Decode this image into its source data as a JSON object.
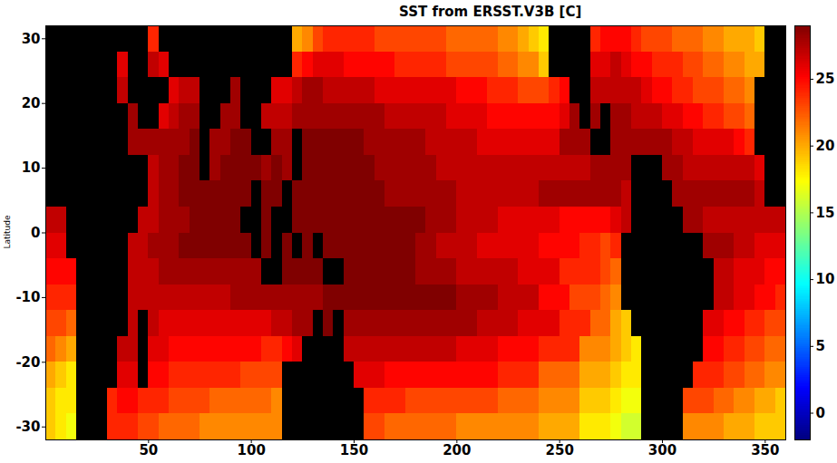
{
  "chart_data": {
    "type": "heatmap",
    "title": "SST from ERSST.V3B [C]",
    "ylabel": "Latitude",
    "xlim": [
      0,
      360
    ],
    "ylim": [
      -32,
      32
    ],
    "xticks": [
      50,
      100,
      150,
      200,
      250,
      300,
      350
    ],
    "yticks": [
      -30,
      -20,
      -10,
      0,
      10,
      20,
      30
    ],
    "colorbar_lim": [
      -2,
      29
    ],
    "colorbar_ticks": [
      0,
      5,
      10,
      15,
      20,
      25
    ],
    "x": [
      2.5,
      7.5,
      12.5,
      17.5,
      22.5,
      27.5,
      32.5,
      37.5,
      42.5,
      47.5,
      52.5,
      57.5,
      62.5,
      67.5,
      72.5,
      77.5,
      82.5,
      87.5,
      92.5,
      97.5,
      102.5,
      107.5,
      112.5,
      117.5,
      122.5,
      127.5,
      132.5,
      137.5,
      142.5,
      147.5,
      152.5,
      157.5,
      162.5,
      167.5,
      172.5,
      177.5,
      182.5,
      187.5,
      192.5,
      197.5,
      202.5,
      207.5,
      212.5,
      217.5,
      222.5,
      227.5,
      232.5,
      237.5,
      242.5,
      247.5,
      252.5,
      257.5,
      262.5,
      267.5,
      272.5,
      277.5,
      282.5,
      287.5,
      292.5,
      297.5,
      302.5,
      307.5,
      312.5,
      317.5,
      322.5,
      327.5,
      332.5,
      337.5,
      342.5,
      347.5,
      352.5,
      357.5
    ],
    "y": [
      30,
      26,
      22,
      18,
      14,
      10,
      6,
      2,
      -2,
      -6,
      -10,
      -14,
      -18,
      -22,
      -26,
      -30
    ],
    "values": [
      [
        null,
        null,
        null,
        null,
        null,
        null,
        null,
        null,
        null,
        null,
        24,
        null,
        null,
        null,
        null,
        null,
        null,
        null,
        null,
        null,
        null,
        null,
        null,
        null,
        20,
        21,
        23,
        24,
        24,
        24,
        24,
        24,
        23,
        23,
        23,
        23,
        23,
        23,
        23,
        22,
        22,
        22,
        22,
        22,
        21,
        21,
        20,
        19,
        18,
        null,
        null,
        null,
        null,
        24,
        25,
        25,
        25,
        24,
        23,
        23,
        23,
        22,
        22,
        22,
        21,
        21,
        20,
        20,
        20,
        19,
        null,
        null
      ],
      [
        null,
        null,
        null,
        null,
        null,
        null,
        null,
        26,
        null,
        null,
        27,
        26,
        null,
        null,
        null,
        null,
        null,
        null,
        null,
        null,
        null,
        null,
        null,
        null,
        24,
        25,
        26,
        26,
        26,
        25,
        25,
        25,
        25,
        25,
        24,
        24,
        24,
        24,
        24,
        23,
        23,
        23,
        23,
        23,
        22,
        22,
        21,
        21,
        19,
        null,
        null,
        null,
        null,
        26,
        26,
        27,
        26,
        25,
        25,
        24,
        24,
        24,
        23,
        23,
        22,
        22,
        21,
        21,
        20,
        20,
        null,
        null
      ],
      [
        null,
        null,
        null,
        null,
        null,
        null,
        null,
        27,
        null,
        null,
        null,
        null,
        26,
        27,
        27,
        null,
        null,
        null,
        28,
        null,
        null,
        null,
        26,
        26,
        27,
        28,
        28,
        27,
        27,
        27,
        27,
        27,
        26,
        26,
        26,
        26,
        26,
        26,
        26,
        26,
        25,
        25,
        25,
        24,
        24,
        24,
        23,
        23,
        23,
        24,
        25,
        null,
        null,
        27,
        27,
        27,
        27,
        27,
        26,
        25,
        25,
        24,
        24,
        23,
        23,
        23,
        22,
        22,
        21,
        null,
        null,
        null
      ],
      [
        null,
        null,
        null,
        null,
        null,
        null,
        null,
        null,
        28,
        null,
        null,
        26,
        27,
        28,
        28,
        null,
        null,
        28,
        28,
        null,
        null,
        27,
        27,
        27,
        28,
        28,
        28,
        28,
        28,
        28,
        28,
        28,
        28,
        27,
        27,
        27,
        27,
        27,
        27,
        26,
        26,
        26,
        26,
        25,
        25,
        25,
        25,
        25,
        25,
        25,
        26,
        28,
        null,
        28,
        null,
        28,
        28,
        27,
        27,
        27,
        26,
        26,
        25,
        25,
        24,
        24,
        23,
        23,
        22,
        null,
        null,
        null
      ],
      [
        null,
        null,
        null,
        null,
        null,
        null,
        null,
        null,
        28,
        28,
        28,
        28,
        28,
        28,
        29,
        null,
        28,
        28,
        29,
        29,
        null,
        null,
        28,
        28,
        null,
        29,
        29,
        29,
        29,
        29,
        29,
        28,
        28,
        28,
        28,
        28,
        28,
        27,
        27,
        27,
        27,
        27,
        26,
        26,
        26,
        26,
        26,
        26,
        26,
        26,
        28,
        28,
        28,
        null,
        null,
        28,
        28,
        28,
        28,
        28,
        28,
        27,
        27,
        26,
        26,
        26,
        26,
        25,
        24,
        null,
        null,
        null
      ],
      [
        null,
        null,
        null,
        null,
        null,
        null,
        null,
        null,
        null,
        null,
        27,
        28,
        28,
        29,
        29,
        null,
        28,
        29,
        29,
        29,
        29,
        28,
        29,
        28,
        null,
        29,
        29,
        29,
        29,
        29,
        29,
        29,
        28,
        28,
        28,
        28,
        28,
        28,
        27,
        27,
        27,
        27,
        27,
        27,
        27,
        27,
        27,
        27,
        27,
        27,
        27,
        27,
        27,
        28,
        28,
        28,
        28,
        null,
        null,
        null,
        28,
        28,
        27,
        27,
        27,
        27,
        27,
        27,
        27,
        26,
        null,
        null
      ],
      [
        null,
        null,
        null,
        null,
        null,
        null,
        null,
        null,
        null,
        null,
        27,
        28,
        28,
        29,
        29,
        29,
        29,
        29,
        29,
        29,
        null,
        29,
        29,
        null,
        29,
        29,
        29,
        29,
        29,
        29,
        29,
        29,
        29,
        28,
        28,
        28,
        28,
        28,
        28,
        28,
        27,
        27,
        27,
        27,
        27,
        27,
        27,
        27,
        28,
        28,
        28,
        28,
        28,
        28,
        28,
        28,
        27,
        null,
        null,
        null,
        null,
        28,
        28,
        28,
        28,
        28,
        28,
        28,
        28,
        27,
        null,
        null
      ],
      [
        27,
        27,
        null,
        null,
        null,
        null,
        null,
        null,
        null,
        27,
        27,
        28,
        28,
        28,
        29,
        29,
        29,
        29,
        29,
        null,
        null,
        29,
        null,
        null,
        29,
        29,
        29,
        29,
        29,
        29,
        29,
        29,
        29,
        29,
        29,
        29,
        29,
        28,
        28,
        28,
        27,
        27,
        27,
        27,
        26,
        26,
        26,
        26,
        26,
        26,
        25,
        25,
        25,
        25,
        25,
        26,
        27,
        null,
        null,
        null,
        null,
        null,
        28,
        28,
        27,
        27,
        27,
        27,
        27,
        27,
        27,
        27
      ],
      [
        26,
        26,
        null,
        null,
        null,
        null,
        null,
        null,
        27,
        27,
        28,
        28,
        28,
        29,
        29,
        29,
        29,
        29,
        29,
        29,
        null,
        29,
        null,
        29,
        null,
        29,
        null,
        29,
        29,
        29,
        29,
        29,
        29,
        29,
        29,
        29,
        28,
        28,
        27,
        27,
        27,
        27,
        26,
        26,
        26,
        26,
        26,
        26,
        25,
        25,
        25,
        25,
        24,
        24,
        23,
        24,
        null,
        null,
        null,
        null,
        null,
        null,
        null,
        null,
        28,
        28,
        28,
        27,
        27,
        26,
        26,
        26
      ],
      [
        25,
        25,
        25,
        null,
        null,
        null,
        null,
        null,
        27,
        27,
        27,
        28,
        28,
        28,
        28,
        28,
        28,
        28,
        28,
        28,
        28,
        null,
        null,
        29,
        29,
        29,
        29,
        null,
        null,
        29,
        29,
        29,
        29,
        29,
        29,
        29,
        28,
        28,
        28,
        28,
        27,
        27,
        27,
        27,
        27,
        27,
        26,
        26,
        26,
        26,
        24,
        24,
        24,
        24,
        23,
        22,
        null,
        null,
        null,
        null,
        null,
        null,
        null,
        null,
        null,
        27,
        27,
        26,
        26,
        26,
        25,
        25
      ],
      [
        24,
        24,
        24,
        null,
        null,
        null,
        null,
        null,
        27,
        27,
        27,
        27,
        27,
        27,
        27,
        27,
        27,
        27,
        28,
        28,
        28,
        28,
        28,
        28,
        28,
        28,
        28,
        29,
        29,
        29,
        29,
        29,
        29,
        29,
        29,
        29,
        29,
        29,
        29,
        29,
        28,
        28,
        28,
        28,
        27,
        27,
        27,
        27,
        25,
        25,
        25,
        23,
        23,
        23,
        22,
        21,
        null,
        null,
        null,
        null,
        null,
        null,
        null,
        null,
        null,
        27,
        27,
        26,
        26,
        25,
        25,
        24
      ],
      [
        23,
        23,
        22,
        null,
        null,
        null,
        null,
        null,
        27,
        null,
        27,
        26,
        26,
        26,
        26,
        26,
        26,
        26,
        26,
        26,
        26,
        26,
        27,
        27,
        28,
        28,
        null,
        29,
        null,
        28,
        28,
        28,
        28,
        28,
        28,
        28,
        28,
        28,
        28,
        28,
        28,
        28,
        27,
        27,
        27,
        27,
        26,
        26,
        26,
        26,
        24,
        24,
        24,
        22,
        22,
        20,
        19,
        null,
        null,
        null,
        null,
        null,
        null,
        null,
        26,
        26,
        25,
        25,
        24,
        24,
        23,
        23
      ],
      [
        22,
        21,
        20,
        null,
        null,
        null,
        null,
        27,
        27,
        null,
        26,
        26,
        25,
        25,
        25,
        25,
        25,
        25,
        25,
        25,
        25,
        24,
        24,
        25,
        26,
        null,
        null,
        null,
        null,
        27,
        27,
        27,
        27,
        27,
        27,
        27,
        27,
        27,
        27,
        27,
        26,
        26,
        26,
        26,
        25,
        25,
        25,
        25,
        24,
        24,
        24,
        24,
        21,
        21,
        21,
        20,
        19,
        18,
        null,
        null,
        null,
        null,
        null,
        null,
        25,
        25,
        24,
        24,
        23,
        23,
        22,
        22
      ],
      [
        20,
        19,
        18,
        null,
        null,
        null,
        null,
        26,
        26,
        null,
        25,
        25,
        24,
        24,
        24,
        24,
        24,
        24,
        24,
        23,
        23,
        23,
        23,
        null,
        null,
        null,
        null,
        null,
        null,
        null,
        26,
        26,
        26,
        25,
        25,
        25,
        25,
        25,
        25,
        25,
        25,
        25,
        25,
        25,
        24,
        24,
        24,
        24,
        22,
        22,
        22,
        22,
        20,
        20,
        20,
        19,
        18,
        18,
        null,
        null,
        null,
        null,
        null,
        24,
        24,
        24,
        23,
        23,
        22,
        22,
        21,
        21
      ],
      [
        19,
        18,
        18,
        null,
        null,
        null,
        24,
        25,
        25,
        24,
        24,
        24,
        23,
        23,
        23,
        23,
        22,
        22,
        22,
        22,
        22,
        22,
        21,
        null,
        null,
        null,
        null,
        null,
        null,
        null,
        null,
        24,
        24,
        24,
        24,
        23,
        23,
        23,
        23,
        23,
        23,
        23,
        23,
        23,
        22,
        22,
        22,
        22,
        21,
        21,
        21,
        21,
        19,
        19,
        19,
        18,
        17,
        17,
        null,
        null,
        null,
        null,
        23,
        23,
        23,
        22,
        22,
        21,
        21,
        20,
        20,
        19
      ],
      [
        19,
        18,
        17,
        null,
        null,
        null,
        24,
        24,
        24,
        23,
        23,
        22,
        22,
        22,
        22,
        21,
        21,
        21,
        21,
        21,
        21,
        21,
        21,
        null,
        null,
        null,
        null,
        null,
        null,
        null,
        null,
        23,
        23,
        22,
        22,
        22,
        22,
        22,
        22,
        22,
        21,
        21,
        21,
        21,
        21,
        21,
        21,
        21,
        20,
        20,
        20,
        20,
        18,
        18,
        18,
        17,
        16,
        16,
        null,
        null,
        null,
        null,
        21,
        21,
        21,
        21,
        20,
        20,
        20,
        19,
        19,
        19
      ]
    ]
  }
}
